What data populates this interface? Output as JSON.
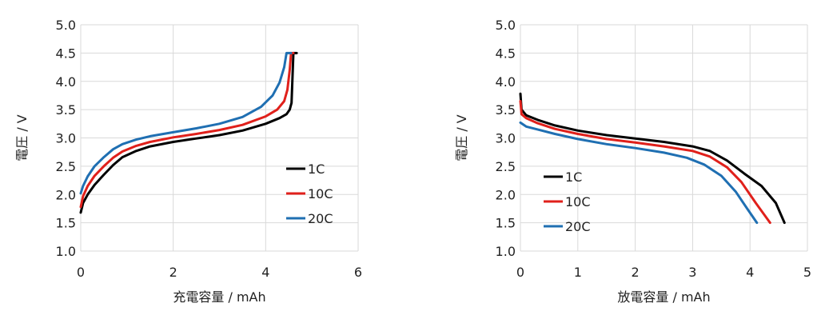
{
  "chart_data": [
    {
      "type": "line",
      "xlabel": "充電容量 / mAh",
      "ylabel": "電圧 / V",
      "xlim": [
        0,
        6
      ],
      "ylim": [
        1.0,
        5.0
      ],
      "xticks": [
        "0",
        "2",
        "4",
        "6"
      ],
      "yticks": [
        "1.0",
        "1.5",
        "2.0",
        "2.5",
        "3.0",
        "3.5",
        "4.0",
        "4.5",
        "5.0"
      ],
      "grid": true,
      "legend_position": "bottom-right",
      "series": [
        {
          "name": "1C",
          "color": "#000000",
          "points": [
            [
              0,
              1.68
            ],
            [
              0.05,
              1.85
            ],
            [
              0.15,
              2.0
            ],
            [
              0.3,
              2.17
            ],
            [
              0.5,
              2.35
            ],
            [
              0.7,
              2.52
            ],
            [
              0.9,
              2.66
            ],
            [
              1.2,
              2.77
            ],
            [
              1.5,
              2.85
            ],
            [
              2.0,
              2.93
            ],
            [
              2.5,
              2.99
            ],
            [
              3.0,
              3.05
            ],
            [
              3.5,
              3.13
            ],
            [
              4.0,
              3.25
            ],
            [
              4.3,
              3.35
            ],
            [
              4.45,
              3.42
            ],
            [
              4.52,
              3.5
            ],
            [
              4.56,
              3.62
            ],
            [
              4.6,
              4.5
            ],
            [
              4.67,
              4.5
            ]
          ]
        },
        {
          "name": "10C",
          "color": "#e0201b",
          "points": [
            [
              0,
              1.78
            ],
            [
              0.05,
              1.97
            ],
            [
              0.15,
              2.15
            ],
            [
              0.3,
              2.33
            ],
            [
              0.5,
              2.5
            ],
            [
              0.7,
              2.65
            ],
            [
              0.9,
              2.76
            ],
            [
              1.2,
              2.86
            ],
            [
              1.5,
              2.93
            ],
            [
              2.0,
              3.01
            ],
            [
              2.5,
              3.07
            ],
            [
              3.0,
              3.14
            ],
            [
              3.5,
              3.23
            ],
            [
              4.0,
              3.38
            ],
            [
              4.25,
              3.5
            ],
            [
              4.4,
              3.65
            ],
            [
              4.47,
              3.85
            ],
            [
              4.52,
              4.2
            ],
            [
              4.55,
              4.5
            ],
            [
              4.6,
              4.5
            ]
          ]
        },
        {
          "name": "20C",
          "color": "#1f6fb2",
          "points": [
            [
              0,
              2.02
            ],
            [
              0.05,
              2.15
            ],
            [
              0.15,
              2.32
            ],
            [
              0.3,
              2.5
            ],
            [
              0.5,
              2.66
            ],
            [
              0.7,
              2.8
            ],
            [
              0.9,
              2.89
            ],
            [
              1.2,
              2.97
            ],
            [
              1.5,
              3.03
            ],
            [
              2.0,
              3.1
            ],
            [
              2.5,
              3.17
            ],
            [
              3.0,
              3.25
            ],
            [
              3.5,
              3.37
            ],
            [
              3.9,
              3.55
            ],
            [
              4.15,
              3.75
            ],
            [
              4.3,
              3.98
            ],
            [
              4.4,
              4.25
            ],
            [
              4.45,
              4.5
            ],
            [
              4.55,
              4.5
            ]
          ]
        }
      ]
    },
    {
      "type": "line",
      "xlabel": "放電容量 / mAh",
      "ylabel": "電圧 / V",
      "xlim": [
        0,
        5
      ],
      "ylim": [
        1.0,
        5.0
      ],
      "xticks": [
        "0",
        "1",
        "2",
        "3",
        "4",
        "5"
      ],
      "yticks": [
        "1.0",
        "1.5",
        "2.0",
        "2.5",
        "3.0",
        "3.5",
        "4.0",
        "4.5",
        "5.0"
      ],
      "grid": true,
      "legend_position": "bottom-left",
      "series": [
        {
          "name": "1C",
          "color": "#000000",
          "points": [
            [
              0,
              3.78
            ],
            [
              0.02,
              3.5
            ],
            [
              0.1,
              3.4
            ],
            [
              0.3,
              3.32
            ],
            [
              0.6,
              3.22
            ],
            [
              1.0,
              3.13
            ],
            [
              1.5,
              3.05
            ],
            [
              2.0,
              2.99
            ],
            [
              2.5,
              2.93
            ],
            [
              3.0,
              2.85
            ],
            [
              3.3,
              2.77
            ],
            [
              3.6,
              2.6
            ],
            [
              3.9,
              2.37
            ],
            [
              4.2,
              2.15
            ],
            [
              4.45,
              1.85
            ],
            [
              4.6,
              1.5
            ]
          ]
        },
        {
          "name": "10C",
          "color": "#e0201b",
          "points": [
            [
              0,
              3.65
            ],
            [
              0.02,
              3.42
            ],
            [
              0.1,
              3.35
            ],
            [
              0.3,
              3.26
            ],
            [
              0.6,
              3.16
            ],
            [
              1.0,
              3.07
            ],
            [
              1.5,
              2.98
            ],
            [
              2.0,
              2.92
            ],
            [
              2.5,
              2.85
            ],
            [
              3.0,
              2.77
            ],
            [
              3.3,
              2.67
            ],
            [
              3.6,
              2.48
            ],
            [
              3.85,
              2.22
            ],
            [
              4.1,
              1.85
            ],
            [
              4.35,
              1.5
            ]
          ]
        },
        {
          "name": "20C",
          "color": "#1f6fb2",
          "points": [
            [
              0,
              3.27
            ],
            [
              0.1,
              3.2
            ],
            [
              0.3,
              3.15
            ],
            [
              0.6,
              3.07
            ],
            [
              1.0,
              2.98
            ],
            [
              1.5,
              2.89
            ],
            [
              2.0,
              2.82
            ],
            [
              2.5,
              2.74
            ],
            [
              2.9,
              2.65
            ],
            [
              3.2,
              2.53
            ],
            [
              3.5,
              2.33
            ],
            [
              3.75,
              2.05
            ],
            [
              3.95,
              1.75
            ],
            [
              4.12,
              1.5
            ]
          ]
        }
      ]
    }
  ]
}
